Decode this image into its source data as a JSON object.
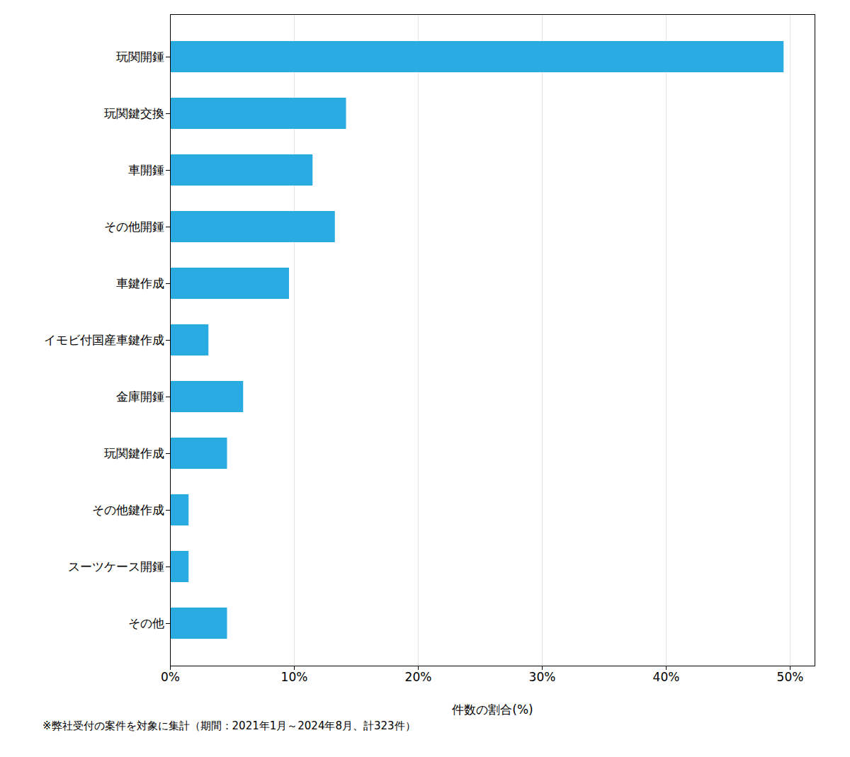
{
  "chart_data": {
    "type": "bar",
    "orientation": "horizontal",
    "categories": [
      "玩関開鍾",
      "玩関鍵交換",
      "車開鍾",
      "その他開鍾",
      "車鍵作成",
      "イモビ付国産車鍵作成",
      "金庫開鍾",
      "玩関鍵作成",
      "その他鍵作成",
      "スーツケース開鍾",
      "その他"
    ],
    "values": [
      49.5,
      14.2,
      11.5,
      13.3,
      9.6,
      3.1,
      5.9,
      4.6,
      1.5,
      1.5,
      4.6
    ],
    "color": "#29abe2",
    "xlabel": "件数の割合(%)",
    "xlim": [
      0,
      52
    ],
    "xticks": [
      {
        "value": 0,
        "label": "0%"
      },
      {
        "value": 10,
        "label": "10%"
      },
      {
        "value": 20,
        "label": "20%"
      },
      {
        "value": 30,
        "label": "30%"
      },
      {
        "value": 40,
        "label": "40%"
      },
      {
        "value": 50,
        "label": "50%"
      }
    ],
    "grid": true,
    "footnote": "※弊社受付の案件を対象に集計（期間：2021年1月～2024年8月、計323件）"
  }
}
